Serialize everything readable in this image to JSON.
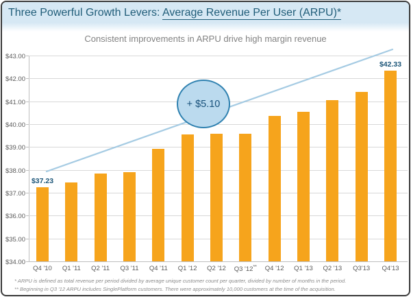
{
  "slide": {
    "title_prefix": "Three Powerful Growth Levers: ",
    "title_underlined": "Average Revenue Per User (ARPU)*",
    "subtitle": "Consistent improvements in ARPU drive high margin revenue",
    "footnote_1": "* ARPU is defined as total revenue per period divided by average unique customer count per quarter, divided by number of months in the period.",
    "footnote_2": "** Beginning in Q3 '12 ARPU includes SinglePlatform customers.  There were approximately 10,000 customers at the time of the acquisition."
  },
  "annotation": {
    "delta_label": "+ $5.10"
  },
  "chart_data": {
    "type": "bar",
    "title": "Consistent improvements in ARPU drive high margin revenue",
    "categories": [
      "Q4 '10",
      "Q1 '11",
      "Q2 '11",
      "Q3 '11",
      "Q4 '11",
      "Q1 '12",
      "Q2 '12",
      "Q3 '12**",
      "Q4 '12",
      "Q1 '13",
      "Q2 '13",
      "Q3'13",
      "Q4'13"
    ],
    "values": [
      37.23,
      37.45,
      37.85,
      37.9,
      38.93,
      39.55,
      39.58,
      39.58,
      40.35,
      40.55,
      41.05,
      41.4,
      42.33
    ],
    "xlabel": "",
    "ylabel": "",
    "ylim": [
      34,
      43
    ],
    "ytick_values": [
      34,
      35,
      36,
      37,
      38,
      39,
      40,
      41,
      42,
      43
    ],
    "ytick_labels": [
      "$34.00",
      "$35.00",
      "$36.00",
      "$37.00",
      "$38.00",
      "$39.00",
      "$40.00",
      "$41.00",
      "$42.00",
      "$43.00"
    ],
    "grid": true,
    "legend": "none",
    "bar_labels": {
      "0": "$37.23",
      "12": "$42.33"
    },
    "annotation_text": "+ $5.10",
    "trendline": true
  },
  "colors": {
    "title_text": "#1F5C78",
    "title_band": "#D6E8F4",
    "subtitle_text": "#828282",
    "bar": "#F6A41C",
    "gridline": "#D8D8D8",
    "axis": "#BDBDBD",
    "axis_label": "#5A5A5A",
    "data_label": "#1D5679",
    "trendline": "#A5CBE3",
    "bubble_fill": "#BBDAEE",
    "bubble_border": "#2F81B0",
    "bubble_text": "#17507A",
    "footnote_text": "#8C8C8C"
  }
}
